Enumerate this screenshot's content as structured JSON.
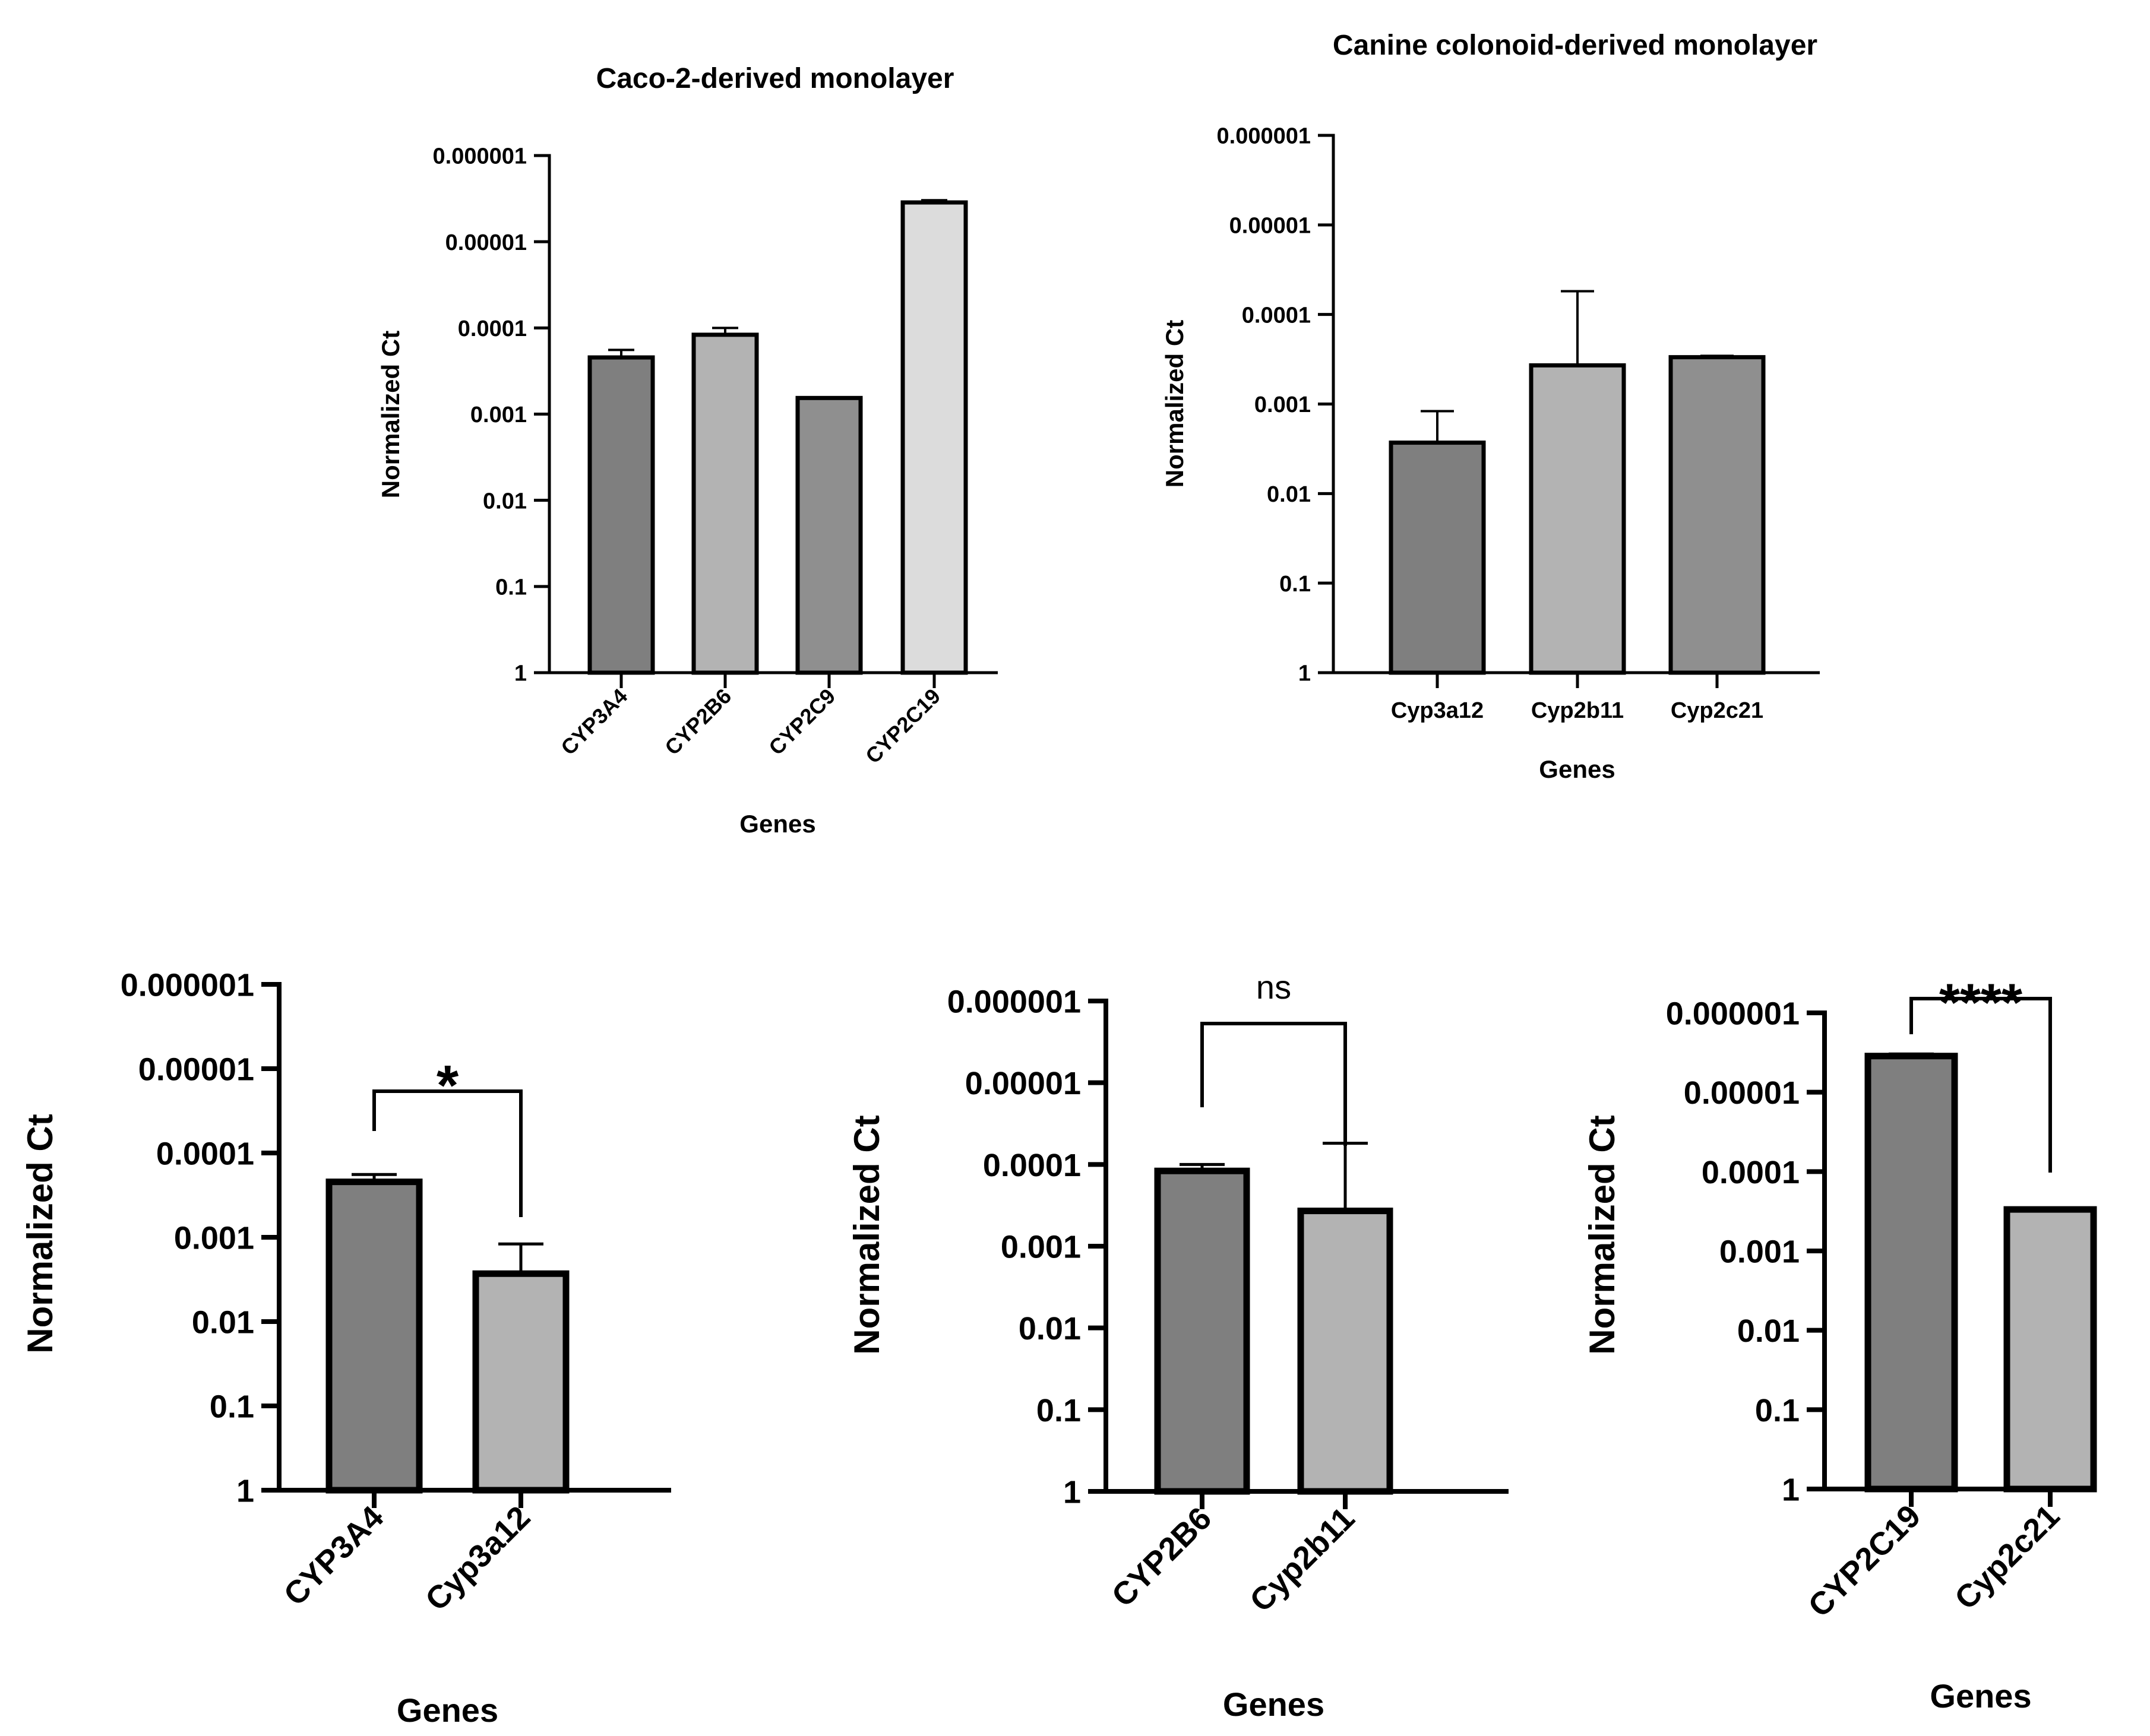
{
  "colors": {
    "bar_dark": "#7f7f7f",
    "bar_mid": "#8f8f8f",
    "bar_light": "#b3b3b3",
    "bar_lightest": "#dcdcdc",
    "ink": "#000000"
  },
  "chart_data": [
    {
      "id": "caco2",
      "type": "bar",
      "title": "Caco-2-derived monolayer",
      "xlabel": "Genes",
      "ylabel": "Normalized Ct",
      "y_scale": "log",
      "y_reversed": true,
      "ylim": [
        1,
        1e-06
      ],
      "y_ticks": [
        {
          "value": 1,
          "label": "1"
        },
        {
          "value": 0.1,
          "label": "0.1"
        },
        {
          "value": 0.01,
          "label": "0.01"
        },
        {
          "value": 0.001,
          "label": "0.001"
        },
        {
          "value": 0.0001,
          "label": "0.0001"
        },
        {
          "value": 1e-05,
          "label": "0.00001"
        },
        {
          "value": 1e-06,
          "label": "0.000001"
        }
      ],
      "categories": [
        "CYP3A4",
        "CYP2B6",
        "CYP2C9",
        "CYP2C19"
      ],
      "values": [
        0.00022,
        0.00012,
        0.00065,
        3.5e-06
      ],
      "error_tips": [
        0.00018,
        0.0001,
        0.00064,
        3.3e-06
      ],
      "bar_colors": [
        "#7f7f7f",
        "#b3b3b3",
        "#8f8f8f",
        "#dcdcdc"
      ],
      "rotate_xticks": true
    },
    {
      "id": "canine",
      "type": "bar",
      "title": "Canine colonoid-derived monolayer",
      "xlabel": "Genes",
      "ylabel": "Normalized Ct",
      "y_scale": "log",
      "y_reversed": true,
      "ylim": [
        1,
        1e-06
      ],
      "y_ticks": [
        {
          "value": 1,
          "label": "1"
        },
        {
          "value": 0.1,
          "label": "0.1"
        },
        {
          "value": 0.01,
          "label": "0.01"
        },
        {
          "value": 0.001,
          "label": "0.001"
        },
        {
          "value": 0.0001,
          "label": "0.0001"
        },
        {
          "value": 1e-05,
          "label": "0.00001"
        },
        {
          "value": 1e-06,
          "label": "0.000001"
        }
      ],
      "categories": [
        "Cyp3a12",
        "Cyp2b11",
        "Cyp2c21"
      ],
      "values": [
        0.0027,
        0.00037,
        0.0003
      ],
      "error_tips": [
        0.0012,
        5.5e-05,
        0.00029
      ],
      "bar_colors": [
        "#7f7f7f",
        "#b3b3b3",
        "#8f8f8f"
      ],
      "rotate_xticks": false
    },
    {
      "id": "cmp1",
      "type": "bar",
      "title": "",
      "xlabel": "Genes",
      "ylabel": "Normalized Ct",
      "y_scale": "log",
      "y_reversed": true,
      "ylim": [
        1,
        1e-06
      ],
      "y_ticks": [
        {
          "value": 1,
          "label": "1"
        },
        {
          "value": 0.1,
          "label": "0.1"
        },
        {
          "value": 0.01,
          "label": "0.01"
        },
        {
          "value": 0.001,
          "label": "0.001"
        },
        {
          "value": 0.0001,
          "label": "0.0001"
        },
        {
          "value": 1e-05,
          "label": "0.00001"
        },
        {
          "value": 1e-06,
          "label": "0.000001"
        }
      ],
      "categories": [
        "CYP3A4",
        "Cyp3a12"
      ],
      "values": [
        0.00022,
        0.0027
      ],
      "error_tips": [
        0.00018,
        0.0012
      ],
      "bar_colors": [
        "#7f7f7f",
        "#b3b3b3"
      ],
      "rotate_xticks": true,
      "significance": {
        "label": "*"
      }
    },
    {
      "id": "cmp2",
      "type": "bar",
      "title": "",
      "xlabel": "Genes",
      "ylabel": "Normalized Ct",
      "y_scale": "log",
      "y_reversed": true,
      "ylim": [
        1,
        1e-06
      ],
      "y_ticks": [
        {
          "value": 1,
          "label": "1"
        },
        {
          "value": 0.1,
          "label": "0.1"
        },
        {
          "value": 0.01,
          "label": "0.01"
        },
        {
          "value": 0.001,
          "label": "0.001"
        },
        {
          "value": 0.0001,
          "label": "0.0001"
        },
        {
          "value": 1e-05,
          "label": "0.00001"
        },
        {
          "value": 1e-06,
          "label": "0.000001"
        }
      ],
      "categories": [
        "CYP2B6",
        "Cyp2b11"
      ],
      "values": [
        0.00012,
        0.00037
      ],
      "error_tips": [
        0.0001,
        5.5e-05
      ],
      "bar_colors": [
        "#7f7f7f",
        "#b3b3b3"
      ],
      "rotate_xticks": true,
      "significance": {
        "label": "ns"
      }
    },
    {
      "id": "cmp3",
      "type": "bar",
      "title": "",
      "xlabel": "Genes",
      "ylabel": "Normalized Ct",
      "y_scale": "log",
      "y_reversed": true,
      "ylim": [
        1,
        1e-06
      ],
      "y_ticks": [
        {
          "value": 1,
          "label": "1"
        },
        {
          "value": 0.1,
          "label": "0.1"
        },
        {
          "value": 0.01,
          "label": "0.01"
        },
        {
          "value": 0.001,
          "label": "0.001"
        },
        {
          "value": 0.0001,
          "label": "0.0001"
        },
        {
          "value": 1e-05,
          "label": "0.00001"
        },
        {
          "value": 1e-06,
          "label": "0.000001"
        }
      ],
      "categories": [
        "CYP2C19",
        "Cyp2c21"
      ],
      "values": [
        3.5e-06,
        0.0003
      ],
      "error_tips": [
        3.3e-06,
        0.00029
      ],
      "bar_colors": [
        "#7f7f7f",
        "#b3b3b3"
      ],
      "rotate_xticks": true,
      "significance": {
        "label": "****"
      }
    }
  ]
}
